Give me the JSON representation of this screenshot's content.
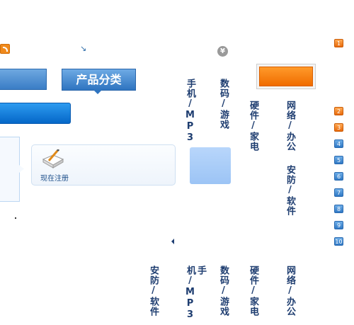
{
  "header": {
    "category_tab_label": "产品分类"
  },
  "register": {
    "label": "现在注册"
  },
  "columns_top": [
    {
      "label": "手机/MP3"
    },
    {
      "label": "数码/游戏"
    },
    {
      "label": "硬件/家电"
    },
    {
      "label": "网络/办公"
    },
    {
      "label": "安防/软件"
    }
  ],
  "columns_bottom": [
    {
      "label": "安防/软件"
    },
    {
      "label": "手机/MP3"
    },
    {
      "label": "数码/游戏"
    },
    {
      "label": "硬件/家电"
    },
    {
      "label": "网络/办公"
    }
  ],
  "badges": [
    {
      "label": "1",
      "color": "#f07a12"
    },
    {
      "label": "2",
      "color": "#f07a12"
    },
    {
      "label": "3",
      "color": "#f07a12"
    },
    {
      "label": "4",
      "color": "#3a82cc"
    },
    {
      "label": "5",
      "color": "#3a82cc"
    },
    {
      "label": "6",
      "color": "#3a82cc"
    },
    {
      "label": "7",
      "color": "#3a82cc"
    },
    {
      "label": "8",
      "color": "#3a82cc"
    },
    {
      "label": "9",
      "color": "#3a82cc"
    },
    {
      "label": "10",
      "color": "#3a82cc"
    }
  ],
  "icons": {
    "rss": "rss-icon",
    "arrow": "arrow-se-icon",
    "currency": "yen-icon",
    "register": "pen-paper-icon"
  }
}
